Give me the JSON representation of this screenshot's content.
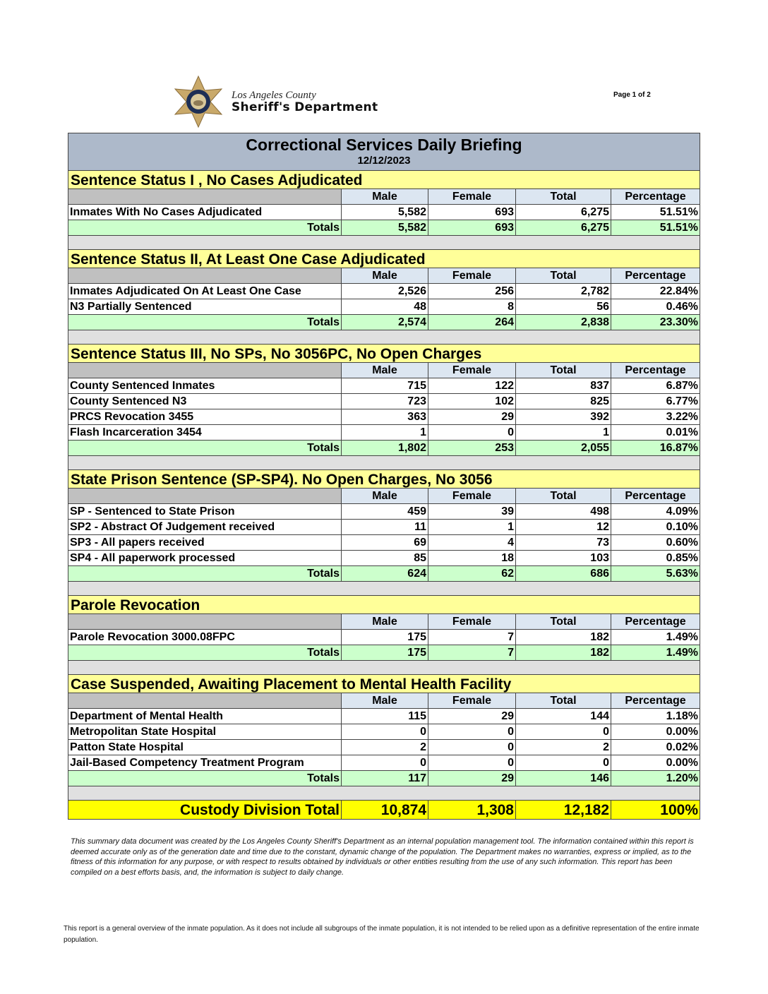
{
  "logo": {
    "line1": "Los Angeles County",
    "line2": "Sheriff's Department",
    "badge_text": "SHERIFF LOS ANGELES COUNTY"
  },
  "page_label": "Page 1 of 2",
  "report": {
    "title": "Correctional Services Daily Briefing",
    "date": "12/12/2023",
    "columns": [
      "Male",
      "Female",
      "Total",
      "Percentage"
    ],
    "totals_label": "Totals",
    "sections": [
      {
        "title": "Sentence Status I , No Cases Adjudicated",
        "rows": [
          [
            "Inmates With No Cases Adjudicated",
            "5,582",
            "693",
            "6,275",
            "51.51%"
          ]
        ],
        "totals": [
          "5,582",
          "693",
          "6,275",
          "51.51%"
        ]
      },
      {
        "title": "Sentence Status II, At Least One Case Adjudicated",
        "rows": [
          [
            "Inmates Adjudicated On At Least One Case",
            "2,526",
            "256",
            "2,782",
            "22.84%"
          ],
          [
            "N3 Partially Sentenced",
            "48",
            "8",
            "56",
            "0.46%"
          ]
        ],
        "totals": [
          "2,574",
          "264",
          "2,838",
          "23.30%"
        ]
      },
      {
        "title": "Sentence Status III, No SPs, No 3056PC, No Open Charges",
        "rows": [
          [
            "County Sentenced Inmates",
            "715",
            "122",
            "837",
            "6.87%"
          ],
          [
            "County Sentenced N3",
            "723",
            "102",
            "825",
            "6.77%"
          ],
          [
            "PRCS Revocation 3455",
            "363",
            "29",
            "392",
            "3.22%"
          ],
          [
            "Flash Incarceration 3454",
            "1",
            "0",
            "1",
            "0.01%"
          ]
        ],
        "totals": [
          "1,802",
          "253",
          "2,055",
          "16.87%"
        ]
      },
      {
        "title": "State Prison Sentence (SP-SP4). No Open Charges, No 3056",
        "rows": [
          [
            "SP - Sentenced to State Prison",
            "459",
            "39",
            "498",
            "4.09%"
          ],
          [
            "SP2 - Abstract Of Judgement received",
            "11",
            "1",
            "12",
            "0.10%"
          ],
          [
            "SP3 - All papers received",
            "69",
            "4",
            "73",
            "0.60%"
          ],
          [
            "SP4 - All paperwork processed",
            "85",
            "18",
            "103",
            "0.85%"
          ]
        ],
        "totals": [
          "624",
          "62",
          "686",
          "5.63%"
        ]
      },
      {
        "title": "Parole Revocation",
        "rows": [
          [
            "Parole Revocation 3000.08FPC",
            "175",
            "7",
            "182",
            "1.49%"
          ]
        ],
        "totals": [
          "175",
          "7",
          "182",
          "1.49%"
        ]
      },
      {
        "title": "Case Suspended, Awaiting Placement to Mental Health Facility",
        "rows": [
          [
            "Department of Mental Health",
            "115",
            "29",
            "144",
            "1.18%"
          ],
          [
            "Metropolitan State Hospital",
            "0",
            "0",
            "0",
            "0.00%"
          ],
          [
            "Patton State Hospital",
            "2",
            "0",
            "2",
            "0.02%"
          ],
          [
            "Jail-Based Competency Treatment Program",
            "0",
            "0",
            "0",
            "0.00%"
          ]
        ],
        "totals": [
          "117",
          "29",
          "146",
          "1.20%"
        ]
      }
    ],
    "grand_total": {
      "label": "Custody Division Total",
      "values": [
        "10,874",
        "1,308",
        "12,182",
        "100%"
      ]
    }
  },
  "disclaimer": "This summary data document was created by the Los Angeles County Sheriff's Department as an internal population management tool.  The information contained within this report is deemed accurate only as of the generation date and time due to the constant, dynamic change of the population.  The Department makes no warranties, express or implied, as to the fitness of this information for any purpose, or with respect to results obtained by individuals or other entities resulting from the use of any such information.  This report has been compiled on a best efforts basis, and, the information is subject to daily change.",
  "note": "This report is a general overview of the inmate population.  As it does not include all subgroups of the inmate population, it is not intended to be relied upon as a definitive representation of the entire inmate population.",
  "colors": {
    "title_bg": "#adb9ca",
    "section_bg": "#ffff99",
    "header_bg": "#dce6f1",
    "totals_bg": "#ccffcc",
    "grand_bg": "#ffff00",
    "spacer_bg": "#e0e0e0"
  }
}
